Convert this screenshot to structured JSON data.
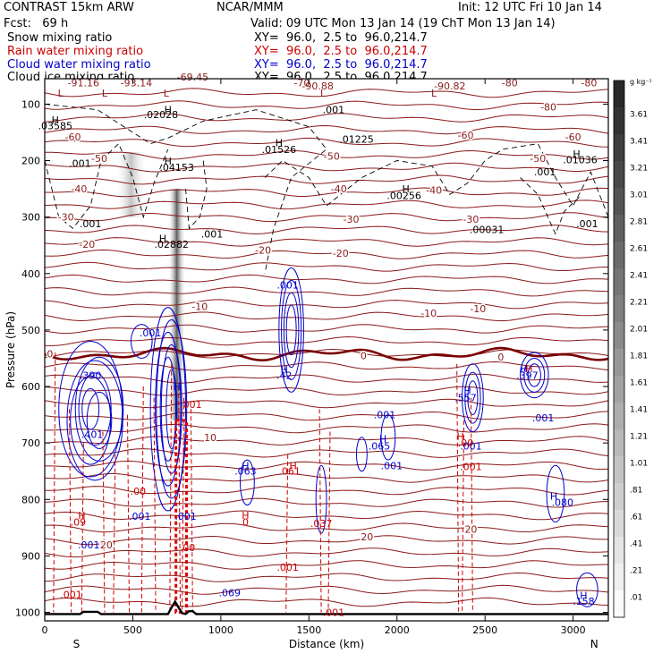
{
  "header": {
    "model": "CONTRAST 15km ARW",
    "center": "NCAR/MMM",
    "init": "Init: 12 UTC Fri 10 Jan 14",
    "fcst": "Fcst:   69 h",
    "valid": "Valid: 09 UTC Mon 13 Jan 14 (19 ChT Mon 13 Jan 14)",
    "fields": [
      {
        "name": "Snow mixing ratio",
        "xy": "XY=  96.0,  2.5 to  96.0,214.7",
        "color": "#000000"
      },
      {
        "name": "Rain water mixing ratio",
        "xy": "XY=  96.0,  2.5 to  96.0,214.7",
        "color": "#cc0000"
      },
      {
        "name": "Cloud water mixing ratio",
        "xy": "XY=  96.0,  2.5 to  96.0,214.7",
        "color": "#0000cc"
      },
      {
        "name": "Cloud ice mixing ratio",
        "xy": "XY=  96.0,  2.5 to  96.0,214.7",
        "color": "#000000"
      }
    ]
  },
  "chart_data": {
    "type": "contour",
    "xlabel": "Distance (km)",
    "ylabel": "Pressure (hPa)",
    "xlim": [
      0,
      3200
    ],
    "ylim": [
      1015,
      55
    ],
    "x_ticks": [
      0,
      500,
      1000,
      1500,
      2000,
      2500,
      3000
    ],
    "y_ticks": [
      100,
      200,
      300,
      400,
      500,
      600,
      700,
      800,
      900,
      1000
    ],
    "x_end_labels": {
      "left": "S",
      "right": "N"
    },
    "colorbar": {
      "unit": "g kg⁻¹",
      "labels": [
        "3.61",
        "3.41",
        "3.21",
        "3.01",
        "2.81",
        "2.61",
        "2.41",
        "2.21",
        "2.01",
        "1.81",
        "1.61",
        "1.41",
        "1.21",
        "1.01",
        ".81",
        ".61",
        ".41",
        ".21",
        ".01"
      ]
    },
    "temperature_labels": [
      {
        "text": "-80",
        "x": 2860,
        "p": 105
      },
      {
        "text": "-80",
        "x": 3090,
        "p": 62
      },
      {
        "text": "-80",
        "x": 2640,
        "p": 62
      },
      {
        "text": "-70",
        "x": 1460,
        "p": 62
      },
      {
        "text": "-60",
        "x": 160,
        "p": 158
      },
      {
        "text": "-60",
        "x": 2390,
        "p": 155
      },
      {
        "text": "-60",
        "x": 3000,
        "p": 158
      },
      {
        "text": "-50",
        "x": 310,
        "p": 196
      },
      {
        "text": "-50",
        "x": 1630,
        "p": 192
      },
      {
        "text": "-50",
        "x": 2800,
        "p": 196
      },
      {
        "text": "-40",
        "x": 195,
        "p": 250
      },
      {
        "text": "-40",
        "x": 1670,
        "p": 250
      },
      {
        "text": "-40",
        "x": 2210,
        "p": 252
      },
      {
        "text": "-30",
        "x": 120,
        "p": 300
      },
      {
        "text": "-30",
        "x": 1740,
        "p": 304
      },
      {
        "text": "-30",
        "x": 2420,
        "p": 304
      },
      {
        "text": "-20",
        "x": 240,
        "p": 348
      },
      {
        "text": "-20",
        "x": 1240,
        "p": 358
      },
      {
        "text": "-20",
        "x": 1680,
        "p": 364
      },
      {
        "text": "-10",
        "x": 880,
        "p": 458
      },
      {
        "text": "-10",
        "x": 2180,
        "p": 470
      },
      {
        "text": "-10",
        "x": 2460,
        "p": 462
      },
      {
        "text": "0",
        "x": 30,
        "p": 542
      },
      {
        "text": "0",
        "x": 1810,
        "p": 545
      },
      {
        "text": "0",
        "x": 2590,
        "p": 548
      },
      {
        "text": "10",
        "x": 940,
        "p": 690
      },
      {
        "text": "20",
        "x": 1830,
        "p": 866
      },
      {
        "text": "20",
        "x": 350,
        "p": 880
      },
      {
        "text": "20",
        "x": 2420,
        "p": 853
      }
    ],
    "low_labels": [
      {
        "text": "-91.16",
        "x": 220,
        "p": 62
      },
      {
        "text": "-93.14",
        "x": 520,
        "p": 62
      },
      {
        "text": "-69.45",
        "x": 840,
        "p": 52
      },
      {
        "text": "-90.88",
        "x": 1550,
        "p": 68
      },
      {
        "text": "-90.82",
        "x": 2300,
        "p": 68
      }
    ],
    "snow_ice_labels": [
      {
        "text": ".03585",
        "x": 60,
        "p": 138
      },
      {
        "text": ".02028",
        "x": 660,
        "p": 118
      },
      {
        "text": ".001",
        "x": 1640,
        "p": 110
      },
      {
        "text": ".01225",
        "x": 1770,
        "p": 162
      },
      {
        "text": ".01526",
        "x": 1330,
        "p": 180
      },
      {
        "text": ".001",
        "x": 200,
        "p": 205
      },
      {
        "text": ".04153",
        "x": 750,
        "p": 212
      },
      {
        "text": ".01036",
        "x": 3040,
        "p": 198
      },
      {
        "text": ".001",
        "x": 2840,
        "p": 220
      },
      {
        "text": ".00256",
        "x": 2040,
        "p": 262
      },
      {
        "text": ".001",
        "x": 260,
        "p": 312
      },
      {
        "text": ".001",
        "x": 950,
        "p": 330
      },
      {
        "text": ".02882",
        "x": 720,
        "p": 348
      },
      {
        "text": ".00031",
        "x": 2510,
        "p": 322
      },
      {
        "text": ".001",
        "x": 3080,
        "p": 312
      }
    ],
    "cloud_water_labels": [
      {
        "text": ".001",
        "x": 1380,
        "p": 420
      },
      {
        "text": ".001",
        "x": 600,
        "p": 505
      },
      {
        "text": ".390",
        "x": 260,
        "p": 580
      },
      {
        "text": ".42",
        "x": 1360,
        "p": 580
      },
      {
        "text": ".397",
        "x": 2740,
        "p": 580
      },
      {
        "text": ".557",
        "x": 2390,
        "p": 620
      },
      {
        "text": ".001",
        "x": 1930,
        "p": 650
      },
      {
        "text": ".001",
        "x": 2830,
        "p": 655
      },
      {
        "text": ".401",
        "x": 270,
        "p": 685
      },
      {
        "text": ".065",
        "x": 1900,
        "p": 705
      },
      {
        "text": ".001",
        "x": 2420,
        "p": 705
      },
      {
        "text": ".063",
        "x": 1140,
        "p": 750
      },
      {
        "text": ".001",
        "x": 1970,
        "p": 740
      },
      {
        "text": ".080",
        "x": 2940,
        "p": 805
      },
      {
        "text": ".001",
        "x": 540,
        "p": 830
      },
      {
        "text": ".001",
        "x": 800,
        "p": 830
      },
      {
        "text": ".001",
        "x": 250,
        "p": 880
      },
      {
        "text": ".069",
        "x": 1050,
        "p": 965
      },
      {
        "text": ".158",
        "x": 3060,
        "p": 980
      }
    ],
    "rain_labels": [
      {
        "text": ".061",
        "x": 1390,
        "p": 750
      },
      {
        "text": ".001",
        "x": 830,
        "p": 632
      },
      {
        "text": ".001",
        "x": 2420,
        "p": 742
      },
      {
        "text": ".00",
        "x": 2390,
        "p": 700
      },
      {
        "text": ".00",
        "x": 530,
        "p": 785
      },
      {
        "text": ".09",
        "x": 190,
        "p": 840
      },
      {
        "text": "0",
        "x": 1140,
        "p": 840
      },
      {
        "text": ".037",
        "x": 1570,
        "p": 842
      },
      {
        "text": ".001",
        "x": 1380,
        "p": 920
      },
      {
        "text": ".001",
        "x": 1640,
        "p": 1000
      },
      {
        "text": ".001",
        "x": 150,
        "p": 968
      },
      {
        "text": ".00",
        "x": 810,
        "p": 885
      }
    ],
    "h_markers": [
      {
        "x": 60,
        "p": 128,
        "color": "#000000"
      },
      {
        "x": 700,
        "p": 110,
        "color": "#000000"
      },
      {
        "x": 1330,
        "p": 168,
        "color": "#000000"
      },
      {
        "x": 700,
        "p": 201,
        "color": "#000000"
      },
      {
        "x": 2050,
        "p": 250,
        "color": "#000000"
      },
      {
        "x": 3020,
        "p": 188,
        "color": "#000000"
      },
      {
        "x": 670,
        "p": 338,
        "color": "#000000"
      },
      {
        "x": 1360,
        "p": 570,
        "color": "#0000cc"
      },
      {
        "x": 2400,
        "p": 607,
        "color": "#0000cc"
      },
      {
        "x": 2720,
        "p": 568,
        "color": "#0000cc"
      },
      {
        "x": 1140,
        "p": 740,
        "color": "#0000cc"
      },
      {
        "x": 1920,
        "p": 693,
        "color": "#0000cc"
      },
      {
        "x": 2890,
        "p": 794,
        "color": "#0000cc"
      },
      {
        "x": 3060,
        "p": 970,
        "color": "#0000cc"
      },
      {
        "x": 2750,
        "p": 568,
        "color": "#cc0000"
      },
      {
        "x": 1140,
        "p": 828,
        "color": "#cc0000"
      },
      {
        "x": 1410,
        "p": 740,
        "color": "#cc0000"
      },
      {
        "x": 2360,
        "p": 688,
        "color": "#cc0000"
      },
      {
        "x": 750,
        "p": 600,
        "color": "#0000cc"
      },
      {
        "x": 210,
        "p": 828,
        "color": "#cc0000"
      }
    ],
    "l_markers": [
      {
        "x": 90,
        "p": 80
      },
      {
        "x": 340,
        "p": 80
      },
      {
        "x": 690,
        "p": 80
      },
      {
        "x": 1580,
        "p": 80
      },
      {
        "x": 2210,
        "p": 80
      }
    ]
  }
}
